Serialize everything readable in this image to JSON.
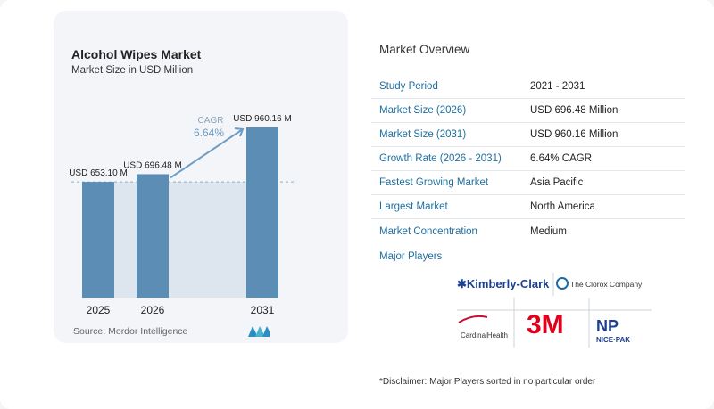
{
  "chart": {
    "title": "Alcohol Wipes Market",
    "subtitle": "Market Size in USD Million",
    "source": "Source:  Mordor Intelligence"
  },
  "chart_data": {
    "type": "bar",
    "categories": [
      "2025",
      "2026",
      "2031"
    ],
    "values": [
      653.1,
      696.48,
      960.16
    ],
    "value_labels": [
      "USD 653.10 M",
      "USD 696.48 M",
      "USD 960.16 M"
    ],
    "title": "Alcohol Wipes Market",
    "subtitle": "Market Size in USD Million",
    "xlabel": "",
    "ylabel": "",
    "cagr_label": "CAGR",
    "cagr_value": "6.64%",
    "grid": false,
    "colors": {
      "bar": "#5b8db5",
      "band": "#dde6ef",
      "arrow": "#6d9cc4",
      "cagr": "#6d9cc4"
    }
  },
  "overview": {
    "title": "Market Overview",
    "rows": [
      {
        "label": "Study Period",
        "value": "2021 - 2031"
      },
      {
        "label": "Market Size (2026)",
        "value": "USD 696.48 Million"
      },
      {
        "label": "Market Size (2031)",
        "value": "USD 960.16 Million"
      },
      {
        "label": "Growth Rate (2026 - 2031)",
        "value": "6.64% CAGR"
      },
      {
        "label": "Fastest Growing Market",
        "value": "Asia Pacific"
      },
      {
        "label": "Largest Market",
        "value": "North America"
      },
      {
        "label": "Market Concentration",
        "value": "Medium"
      }
    ]
  },
  "players": {
    "title": "Major Players",
    "logos": [
      "Kimberly-Clark",
      "The Clorox Company",
      "CardinalHealth",
      "3M",
      "NP NICE-PAK"
    ]
  },
  "disclaimer": "*Disclaimer: Major Players sorted in no particular order"
}
